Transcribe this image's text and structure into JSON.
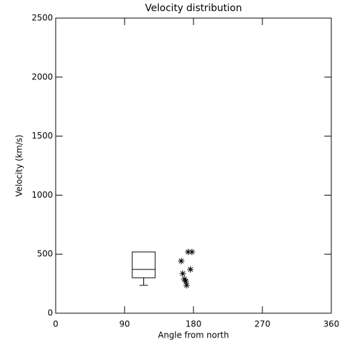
{
  "chart_data": {
    "type": "box",
    "title": "Velocity distribution",
    "xlabel": "Angle from north",
    "ylabel": "Velocity (km/s)",
    "xlim": [
      0,
      360
    ],
    "xticks": [
      0,
      90,
      180,
      270,
      360
    ],
    "ylim": [
      0,
      2500
    ],
    "yticks": [
      0,
      500,
      1000,
      1500,
      2000,
      2500
    ],
    "color": "#000000",
    "box": {
      "x": 115,
      "min": 236,
      "q1": 300,
      "median": 371,
      "q3": 519,
      "max": 519
    },
    "points": {
      "x": [
        164,
        166,
        168,
        170,
        171,
        173,
        178,
        176
      ],
      "y": [
        442,
        336,
        289,
        271,
        236,
        519,
        519,
        371
      ]
    }
  }
}
